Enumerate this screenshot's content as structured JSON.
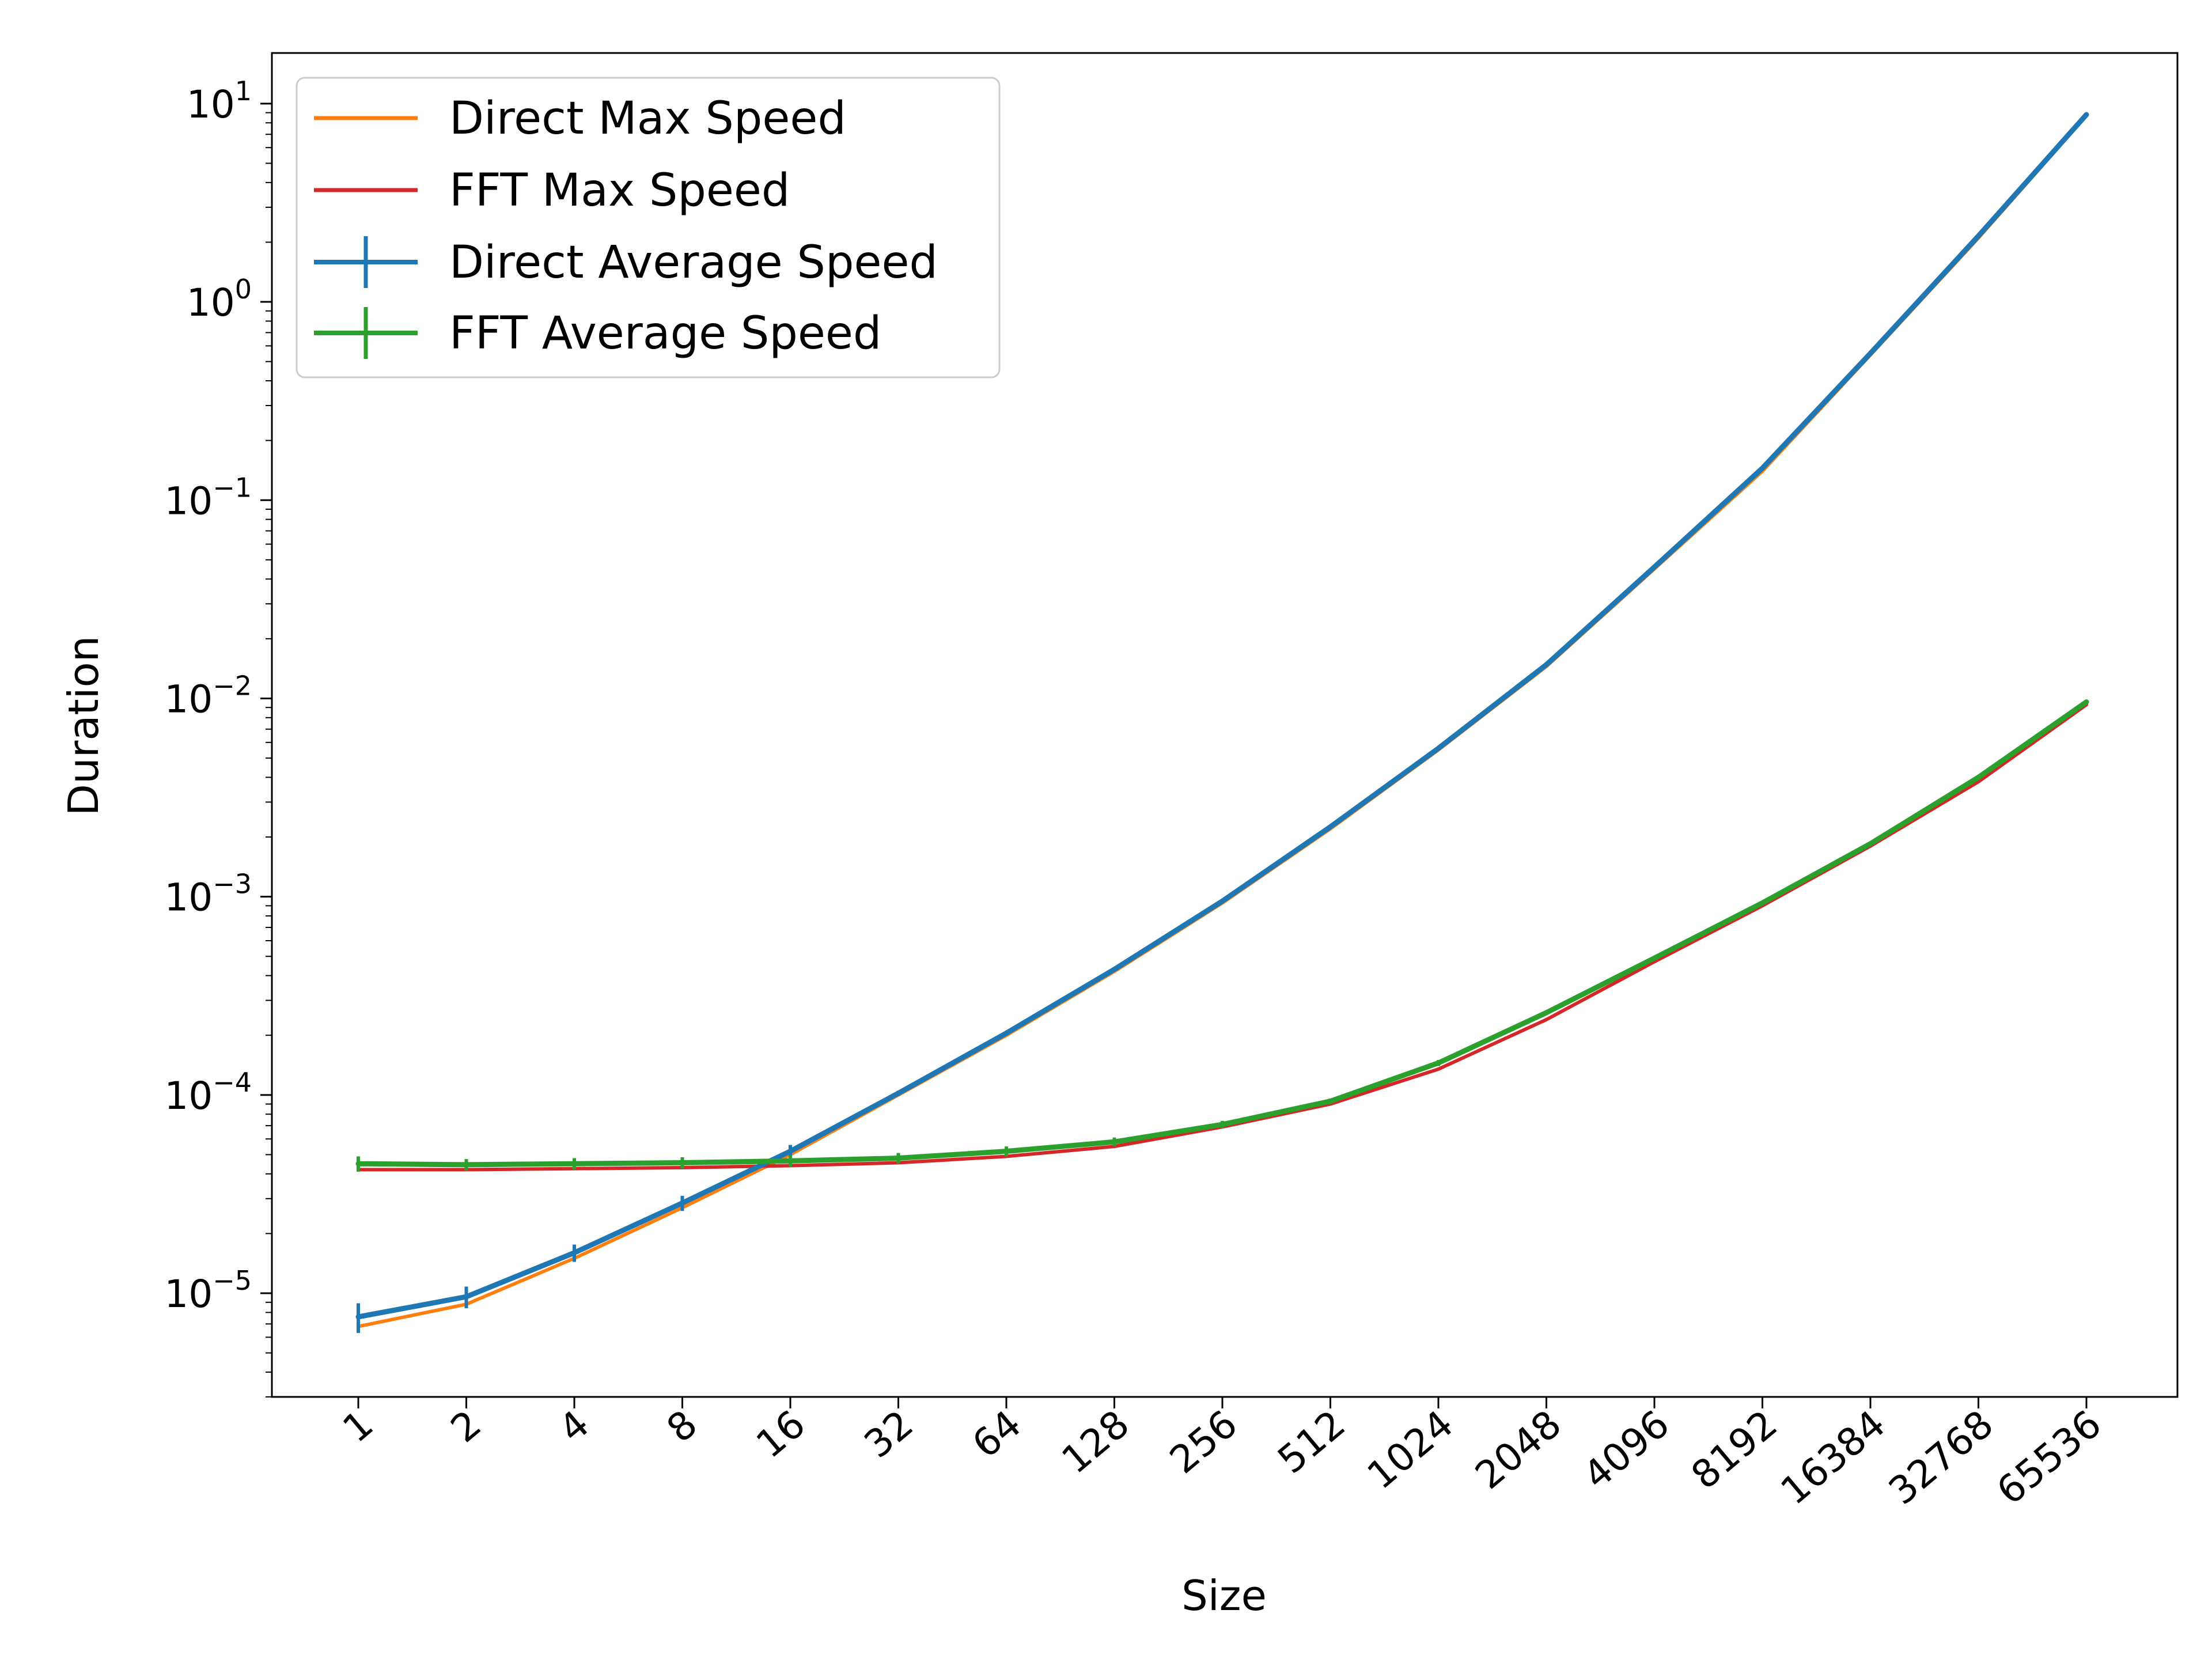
{
  "chart_data": {
    "type": "line",
    "title": "",
    "xlabel": "Size",
    "ylabel": "Duration",
    "xscale": "log2",
    "yscale": "log",
    "ylim": [
      3e-06,
      18
    ],
    "x": [
      1,
      2,
      4,
      8,
      16,
      32,
      64,
      128,
      256,
      512,
      1024,
      2048,
      4096,
      8192,
      16384,
      32768,
      65536
    ],
    "xticklabels": [
      "1",
      "2",
      "4",
      "8",
      "16",
      "32",
      "64",
      "128",
      "256",
      "512",
      "1024",
      "2048",
      "4096",
      "8192",
      "16384",
      "32768",
      "65536"
    ],
    "ytick_exponents": [
      "-5",
      "-4",
      "-3",
      "-2",
      "-1",
      "0",
      "1"
    ],
    "ytick_base": "10",
    "legend_position": "upper-left",
    "grid": false,
    "series": [
      {
        "name": "Direct Max Speed",
        "color": "#ff7f0e",
        "errorbars": false,
        "values": [
          6.8e-06,
          8.8e-06,
          1.5e-05,
          2.7e-05,
          5e-05,
          0.0001,
          0.0002,
          0.00042,
          0.00093,
          0.0022,
          0.0055,
          0.0145,
          0.045,
          0.14,
          0.54,
          2.1,
          8.7
        ]
      },
      {
        "name": "FFT Max Speed",
        "color": "#d62728",
        "errorbars": false,
        "values": [
          4.2e-05,
          4.2e-05,
          4.25e-05,
          4.3e-05,
          4.4e-05,
          4.55e-05,
          4.9e-05,
          5.5e-05,
          6.9e-05,
          9e-05,
          0.000135,
          0.00024,
          0.00047,
          0.0009,
          0.0018,
          0.0038,
          0.0093
        ]
      },
      {
        "name": "Direct Average Speed",
        "color": "#1f77b4",
        "errorbars": true,
        "values": [
          7.6e-06,
          9.6e-06,
          1.6e-05,
          2.85e-05,
          5.2e-05,
          0.000102,
          0.000205,
          0.00043,
          0.00095,
          0.00225,
          0.0056,
          0.0148,
          0.046,
          0.145,
          0.55,
          2.15,
          8.8
        ],
        "errors": [
          1.3e-06,
          1.2e-06,
          1.6e-06,
          2.5e-06,
          4e-06,
          3e-06,
          3e-06,
          1e-05,
          1e-05,
          3e-05,
          5e-05,
          0.0001,
          0.0002,
          0.001,
          0.002,
          0.01,
          0.03
        ]
      },
      {
        "name": "FFT Average Speed",
        "color": "#2ca02c",
        "errorbars": true,
        "values": [
          4.5e-05,
          4.45e-05,
          4.5e-05,
          4.55e-05,
          4.65e-05,
          4.8e-05,
          5.2e-05,
          5.8e-05,
          7.1e-05,
          9.3e-05,
          0.000145,
          0.00026,
          0.00049,
          0.00093,
          0.00185,
          0.004,
          0.0096
        ],
        "errors": [
          4e-06,
          3e-06,
          3e-06,
          3e-06,
          3e-06,
          3e-06,
          3e-06,
          3e-06,
          3e-06,
          3e-06,
          5e-06,
          5e-06,
          1e-05,
          2e-05,
          3e-05,
          5e-05,
          0.0001
        ]
      }
    ]
  }
}
